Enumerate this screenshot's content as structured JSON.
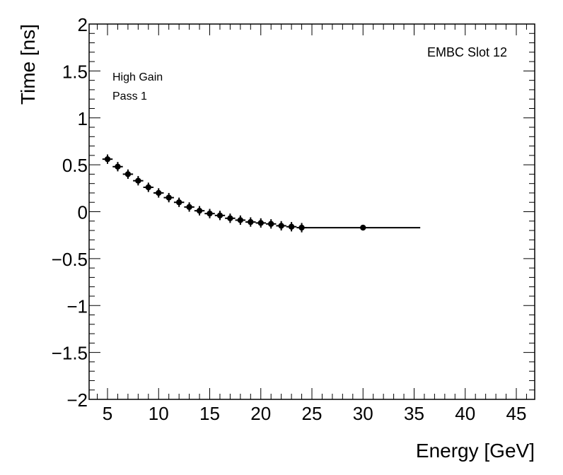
{
  "chart_data": {
    "type": "scatter",
    "title": "",
    "xlabel": "Energy [GeV]",
    "ylabel": "Time [ns]",
    "xlim": [
      3.2,
      46.8
    ],
    "ylim": [
      -2,
      2
    ],
    "xticks": [
      "5",
      "10",
      "15",
      "20",
      "25",
      "30",
      "35",
      "40",
      "45"
    ],
    "yticks": [
      "2",
      "1.5",
      "1",
      "0.5",
      "0",
      "−0.5",
      "−1",
      "−1.5",
      "−2"
    ],
    "annotations": {
      "slot": "EMBC Slot 12",
      "gain": "High Gain",
      "pass": "Pass 1"
    },
    "series": [
      {
        "points": [
          {
            "x": 5,
            "y": 0.56,
            "yerr": 0.05
          },
          {
            "x": 6,
            "y": 0.48,
            "yerr": 0.05
          },
          {
            "x": 7,
            "y": 0.4,
            "yerr": 0.05
          },
          {
            "x": 8,
            "y": 0.33,
            "yerr": 0.05
          },
          {
            "x": 9,
            "y": 0.26,
            "yerr": 0.05
          },
          {
            "x": 10,
            "y": 0.2,
            "yerr": 0.05
          },
          {
            "x": 11,
            "y": 0.15,
            "yerr": 0.05
          },
          {
            "x": 12,
            "y": 0.1,
            "yerr": 0.05
          },
          {
            "x": 13,
            "y": 0.05,
            "yerr": 0.05
          },
          {
            "x": 14,
            "y": 0.01,
            "yerr": 0.05
          },
          {
            "x": 15,
            "y": -0.02,
            "yerr": 0.05
          },
          {
            "x": 16,
            "y": -0.04,
            "yerr": 0.05
          },
          {
            "x": 17,
            "y": -0.07,
            "yerr": 0.05
          },
          {
            "x": 18,
            "y": -0.09,
            "yerr": 0.05
          },
          {
            "x": 19,
            "y": -0.11,
            "yerr": 0.05
          },
          {
            "x": 20,
            "y": -0.12,
            "yerr": 0.05
          },
          {
            "x": 21,
            "y": -0.13,
            "yerr": 0.05
          },
          {
            "x": 22,
            "y": -0.15,
            "yerr": 0.05
          },
          {
            "x": 23,
            "y": -0.16,
            "yerr": 0.05
          },
          {
            "x": 24,
            "y": -0.17,
            "yerr": 0.05
          },
          {
            "x": 30,
            "y": -0.17,
            "xerr": 5.6
          }
        ]
      }
    ],
    "fit_line": {
      "x": [
        24,
        35.6
      ],
      "y": [
        -0.17,
        -0.17
      ]
    }
  }
}
